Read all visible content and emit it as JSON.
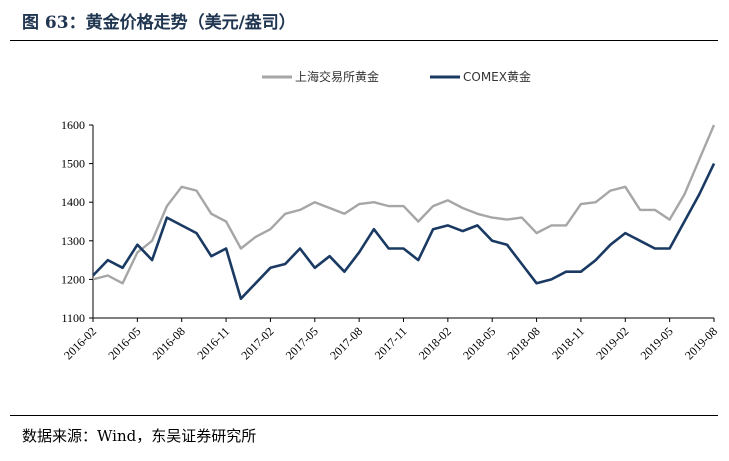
{
  "title": "图 63：黄金价格走势（美元/盎司）",
  "footer": "数据来源：Wind，东吴证券研究所",
  "chart_data": {
    "type": "line",
    "title": "",
    "xlabel": "",
    "ylabel": "",
    "ylim": [
      1100,
      1600
    ],
    "yticks": [
      "1100",
      "1200",
      "1300",
      "1400",
      "1500",
      "1600"
    ],
    "xticks": [
      "2016-02",
      "2016-05",
      "2016-08",
      "2016-11",
      "2017-02",
      "2017-05",
      "2017-08",
      "2017-11",
      "2018-02",
      "2018-05",
      "2018-08",
      "2018-11",
      "2019-02",
      "2019-05",
      "2019-08"
    ],
    "legend_position": "top",
    "grid": false,
    "x": [
      "2016-02",
      "2016-03",
      "2016-04",
      "2016-05",
      "2016-06",
      "2016-07",
      "2016-08",
      "2016-09",
      "2016-10",
      "2016-11",
      "2016-12",
      "2017-01",
      "2017-02",
      "2017-03",
      "2017-04",
      "2017-05",
      "2017-06",
      "2017-07",
      "2017-08",
      "2017-09",
      "2017-10",
      "2017-11",
      "2017-12",
      "2018-01",
      "2018-02",
      "2018-03",
      "2018-04",
      "2018-05",
      "2018-06",
      "2018-07",
      "2018-08",
      "2018-09",
      "2018-10",
      "2018-11",
      "2018-12",
      "2019-01",
      "2019-02",
      "2019-03",
      "2019-04",
      "2019-05",
      "2019-06",
      "2019-07",
      "2019-08"
    ],
    "series": [
      {
        "name": "上海交易所黄金",
        "color": "#a6a6a6",
        "values": [
          1200,
          1210,
          1190,
          1270,
          1300,
          1390,
          1440,
          1430,
          1370,
          1350,
          1280,
          1310,
          1330,
          1370,
          1380,
          1400,
          1385,
          1370,
          1395,
          1400,
          1390,
          1390,
          1350,
          1390,
          1405,
          1385,
          1370,
          1360,
          1355,
          1360,
          1320,
          1340,
          1340,
          1395,
          1400,
          1430,
          1440,
          1380,
          1380,
          1355,
          1420,
          1510,
          1600
        ]
      },
      {
        "name": "COMEX黄金",
        "color": "#1a3a63",
        "values": [
          1210,
          1250,
          1230,
          1290,
          1250,
          1360,
          1340,
          1320,
          1260,
          1280,
          1150,
          1190,
          1230,
          1240,
          1280,
          1230,
          1260,
          1220,
          1270,
          1330,
          1280,
          1280,
          1250,
          1330,
          1340,
          1325,
          1340,
          1300,
          1290,
          1240,
          1190,
          1200,
          1220,
          1220,
          1250,
          1290,
          1320,
          1300,
          1280,
          1280,
          1350,
          1420,
          1500
        ]
      }
    ]
  }
}
